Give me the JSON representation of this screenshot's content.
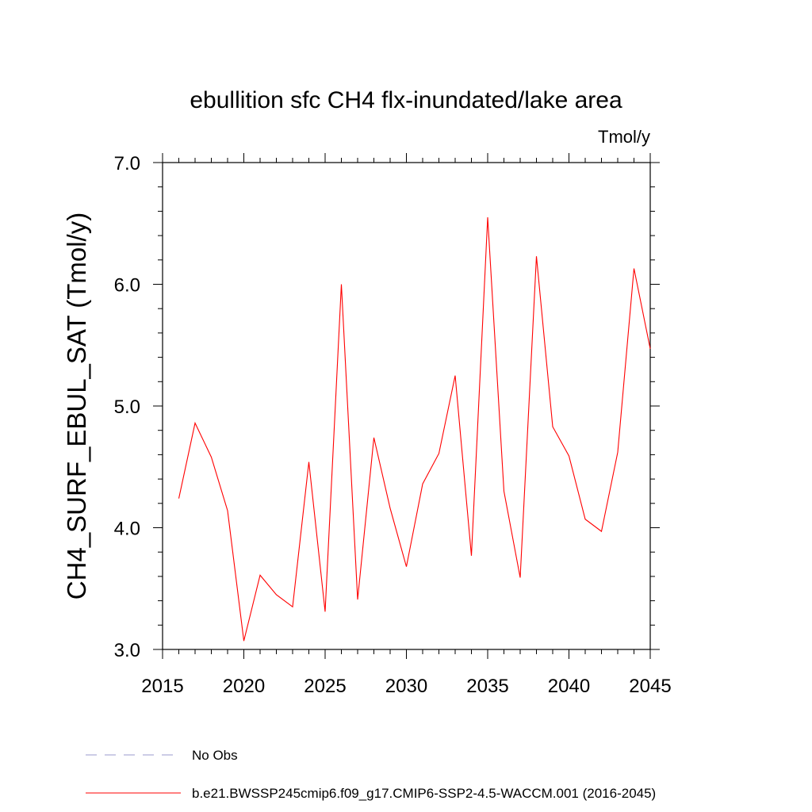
{
  "chart_data": {
    "type": "line",
    "title": "ebullition sfc CH4 flx-inundated/lake area",
    "units_label": "Tmol/y",
    "xlabel": "",
    "ylabel": "CH4_SURF_EBUL_SAT  (Tmol/y)",
    "xlim": [
      2015,
      2045
    ],
    "ylim": [
      3.0,
      7.0
    ],
    "x_ticks": [
      "2015",
      "2020",
      "2025",
      "2030",
      "2035",
      "2040",
      "2045"
    ],
    "y_ticks": [
      "3.0",
      "4.0",
      "5.0",
      "6.0",
      "7.0"
    ],
    "x": [
      2016,
      2017,
      2018,
      2019,
      2020,
      2021,
      2022,
      2023,
      2024,
      2025,
      2026,
      2027,
      2028,
      2029,
      2030,
      2031,
      2032,
      2033,
      2034,
      2035,
      2036,
      2037,
      2038,
      2039,
      2040,
      2041,
      2042,
      2043,
      2044,
      2045
    ],
    "series": [
      {
        "name": "b.e21.BWSSP245cmip6.f09_g17.CMIP6-SSP2-4.5-WACCM.001 (2016-2045)",
        "color": "#ff0000",
        "values": [
          4.24,
          4.86,
          4.58,
          4.14,
          3.07,
          3.61,
          3.45,
          3.35,
          4.54,
          3.31,
          6.0,
          3.41,
          4.74,
          4.16,
          3.68,
          4.36,
          4.61,
          5.25,
          3.77,
          6.55,
          4.3,
          3.59,
          6.23,
          4.83,
          4.59,
          4.07,
          3.97,
          4.62,
          6.13,
          5.47
        ]
      }
    ],
    "legend": [
      {
        "label": "No Obs",
        "style": "dashed",
        "color": "#9999cc"
      },
      {
        "label": "b.e21.BWSSP245cmip6.f09_g17.CMIP6-SSP2-4.5-WACCM.001 (2016-2045)",
        "style": "solid",
        "color": "#ff0000"
      }
    ]
  }
}
